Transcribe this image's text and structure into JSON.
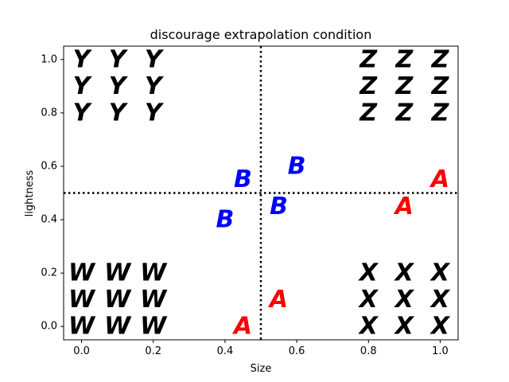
{
  "chart_data": {
    "type": "scatter",
    "title": "discourage extrapolation condition",
    "xlabel": "Size",
    "ylabel": "lightness",
    "xlim": [
      -0.05,
      1.05
    ],
    "ylim": [
      -0.05,
      1.05
    ],
    "x_ticks": [
      "0.0",
      "0.2",
      "0.4",
      "0.6",
      "0.8",
      "1.0"
    ],
    "y_ticks": [
      "0.0",
      "0.2",
      "0.4",
      "0.6",
      "0.8",
      "1.0"
    ],
    "grid": false,
    "reference_lines": [
      {
        "orientation": "vertical",
        "value": 0.5,
        "style": "dotted",
        "color": "#000000"
      },
      {
        "orientation": "horizontal",
        "value": 0.5,
        "style": "dotted",
        "color": "#000000"
      }
    ],
    "series": [
      {
        "label": "Y",
        "color": "#000000",
        "points": [
          [
            0.0,
            1.0
          ],
          [
            0.1,
            1.0
          ],
          [
            0.2,
            1.0
          ],
          [
            0.0,
            0.9
          ],
          [
            0.1,
            0.9
          ],
          [
            0.2,
            0.9
          ],
          [
            0.0,
            0.8
          ],
          [
            0.1,
            0.8
          ],
          [
            0.2,
            0.8
          ]
        ]
      },
      {
        "label": "Z",
        "color": "#000000",
        "points": [
          [
            0.8,
            1.0
          ],
          [
            0.9,
            1.0
          ],
          [
            1.0,
            1.0
          ],
          [
            0.8,
            0.9
          ],
          [
            0.9,
            0.9
          ],
          [
            1.0,
            0.9
          ],
          [
            0.8,
            0.8
          ],
          [
            0.9,
            0.8
          ],
          [
            1.0,
            0.8
          ]
        ]
      },
      {
        "label": "W",
        "color": "#000000",
        "points": [
          [
            0.0,
            0.2
          ],
          [
            0.1,
            0.2
          ],
          [
            0.2,
            0.2
          ],
          [
            0.0,
            0.1
          ],
          [
            0.1,
            0.1
          ],
          [
            0.2,
            0.1
          ],
          [
            0.0,
            0.0
          ],
          [
            0.1,
            0.0
          ],
          [
            0.2,
            0.0
          ]
        ]
      },
      {
        "label": "X",
        "color": "#000000",
        "points": [
          [
            0.8,
            0.2
          ],
          [
            0.9,
            0.2
          ],
          [
            1.0,
            0.2
          ],
          [
            0.8,
            0.1
          ],
          [
            0.9,
            0.1
          ],
          [
            1.0,
            0.1
          ],
          [
            0.8,
            0.0
          ],
          [
            0.9,
            0.0
          ],
          [
            1.0,
            0.0
          ]
        ]
      },
      {
        "label": "B",
        "color": "#0000ff",
        "points": [
          [
            0.45,
            0.55
          ],
          [
            0.6,
            0.6
          ],
          [
            0.55,
            0.45
          ],
          [
            0.4,
            0.4
          ]
        ]
      },
      {
        "label": "A",
        "color": "#ff0000",
        "points": [
          [
            1.0,
            0.55
          ],
          [
            0.9,
            0.45
          ],
          [
            0.55,
            0.1
          ],
          [
            0.45,
            0.0
          ]
        ]
      }
    ]
  }
}
